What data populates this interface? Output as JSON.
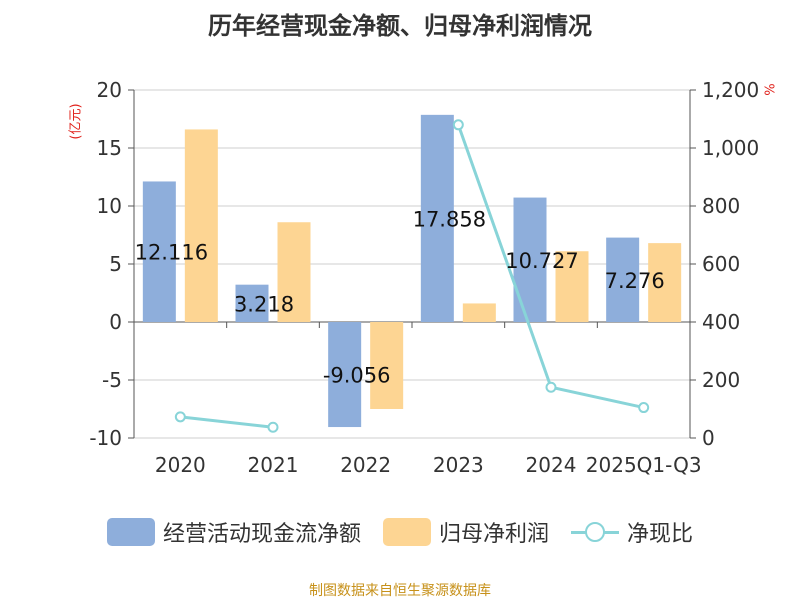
{
  "title": "历年经营现金净额、归母净利润情况",
  "source": "制图数据来自恒生聚源数据库",
  "chart_data": {
    "type": "bar",
    "title": "历年经营现金净额、归母净利润情况",
    "categories": [
      "2020",
      "2021",
      "2022",
      "2023",
      "2024",
      "2025Q1-Q3"
    ],
    "series": [
      {
        "name": "经营活动现金流净额",
        "type": "bar",
        "axis": "left",
        "color": "#8eaedb",
        "values": [
          12.116,
          3.218,
          -9.056,
          17.858,
          10.727,
          7.276
        ],
        "labels": [
          "12.116",
          "3.218",
          "-9.056",
          "17.858",
          "10.727",
          "7.276"
        ]
      },
      {
        "name": "归母净利润",
        "type": "bar",
        "axis": "left",
        "color": "#fdd593",
        "values": [
          16.6,
          8.6,
          -7.5,
          1.6,
          6.1,
          6.8
        ]
      },
      {
        "name": "净现比",
        "type": "line",
        "axis": "right",
        "color": "#88d4d8",
        "values": [
          73,
          37,
          null,
          1080,
          175,
          105
        ]
      }
    ],
    "left_axis": {
      "unit": "(亿元)",
      "ylim": [
        -10,
        20
      ],
      "ticks": [
        "20",
        "15",
        "10",
        "5",
        "0",
        "-5",
        "-10"
      ]
    },
    "right_axis": {
      "unit": "%",
      "ylim": [
        0,
        1200
      ],
      "ticks": [
        "1,200",
        "1,000",
        "800",
        "600",
        "400",
        "200",
        "0"
      ]
    },
    "grid": true,
    "legend_position": "bottom"
  }
}
